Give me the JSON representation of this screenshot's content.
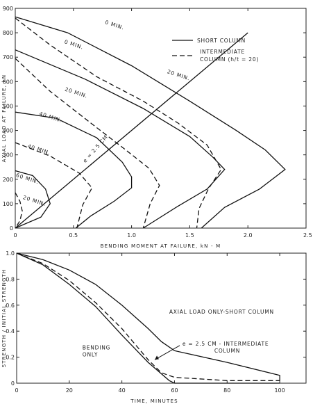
{
  "chart_data": [
    {
      "type": "line",
      "xlabel": "BENDING MOMENT AT FAILURE, kN - M",
      "ylabel": "AXIAL LOAD AT FAILURE, kN",
      "xlim": [
        0,
        2.5
      ],
      "ylim": [
        0,
        900
      ],
      "x_ticks": [
        "0",
        "0.5",
        "1.0",
        "1.5",
        "2.0",
        "2.5"
      ],
      "y_ticks": [
        "0",
        "100",
        "200",
        "300",
        "400",
        "500",
        "600",
        "700",
        "800",
        "900"
      ],
      "legend": {
        "placement": "top-right",
        "entries": [
          {
            "label": "SHORT COLUMN",
            "style": "solid"
          },
          {
            "label_lines": [
              "INTERMEDIATE",
              "COLUMN (h/t = 20)"
            ],
            "style": "dashed"
          }
        ]
      },
      "series": [
        {
          "group": "short",
          "style": "solid",
          "points": [
            [
              0,
              865
            ],
            [
              0.45,
              800
            ],
            [
              1.0,
              665
            ],
            [
              1.5,
              520
            ],
            [
              1.9,
              400
            ],
            [
              2.15,
              320
            ],
            [
              2.32,
              240
            ],
            [
              2.1,
              160
            ],
            [
              1.8,
              85
            ],
            [
              1.6,
              0
            ]
          ]
        },
        {
          "group": "short",
          "style": "solid",
          "points": [
            [
              0,
              730
            ],
            [
              0.6,
              610
            ],
            [
              1.1,
              490
            ],
            [
              1.5,
              375
            ],
            [
              1.7,
              290
            ],
            [
              1.8,
              240
            ],
            [
              1.65,
              160
            ],
            [
              1.4,
              90
            ],
            [
              1.1,
              0
            ]
          ]
        },
        {
          "group": "short",
          "style": "solid",
          "points": [
            [
              0,
              475
            ],
            [
              0.35,
              450
            ],
            [
              0.7,
              370
            ],
            [
              0.92,
              270
            ],
            [
              1.0,
              210
            ],
            [
              1.0,
              165
            ],
            [
              0.85,
              110
            ],
            [
              0.65,
              50
            ],
            [
              0.52,
              0
            ]
          ]
        },
        {
          "group": "short",
          "style": "solid",
          "points": [
            [
              0,
              235
            ],
            [
              0.15,
              215
            ],
            [
              0.26,
              160
            ],
            [
              0.3,
              100
            ],
            [
              0.22,
              45
            ],
            [
              0,
              0
            ]
          ]
        },
        {
          "group": "intermediate",
          "style": "dashed",
          "points": [
            [
              0,
              860
            ],
            [
              0.3,
              750
            ],
            [
              0.7,
              620
            ],
            [
              1.1,
              520
            ],
            [
              1.4,
              430
            ],
            [
              1.65,
              340
            ],
            [
              1.77,
              240
            ],
            [
              1.66,
              160
            ],
            [
              1.58,
              80
            ],
            [
              1.56,
              0
            ]
          ]
        },
        {
          "group": "intermediate",
          "style": "dashed",
          "points": [
            [
              0,
              695
            ],
            [
              0.3,
              560
            ],
            [
              0.65,
              430
            ],
            [
              0.95,
              320
            ],
            [
              1.15,
              245
            ],
            [
              1.24,
              175
            ],
            [
              1.16,
              100
            ],
            [
              1.1,
              0
            ]
          ]
        },
        {
          "group": "intermediate",
          "style": "dashed",
          "points": [
            [
              0,
              350
            ],
            [
              0.3,
              295
            ],
            [
              0.55,
              225
            ],
            [
              0.66,
              165
            ],
            [
              0.58,
              95
            ],
            [
              0.53,
              0
            ]
          ]
        },
        {
          "group": "intermediate",
          "style": "dashed",
          "points": [
            [
              0,
              145
            ],
            [
              0.04,
              110
            ],
            [
              0.06,
              70
            ],
            [
              0.04,
              30
            ],
            [
              0,
              0
            ]
          ]
        },
        {
          "group": "eccentricity",
          "style": "solid",
          "label": "e = 2.5 CM",
          "points": [
            [
              0,
              0
            ],
            [
              2.0,
              800
            ]
          ]
        }
      ],
      "curve_labels": [
        {
          "text": "0 MIN.",
          "x": 0.85,
          "y": 825
        },
        {
          "text": "0 MIN.",
          "x": 0.5,
          "y": 745
        },
        {
          "text": "20 MIN.",
          "x": 1.4,
          "y": 620
        },
        {
          "text": "20 MIN.",
          "x": 0.52,
          "y": 548
        },
        {
          "text": "40 MIN.",
          "x": 0.3,
          "y": 448
        },
        {
          "text": "40 MIN.",
          "x": 0.2,
          "y": 315
        },
        {
          "text": "60 MIN.",
          "x": 0.1,
          "y": 196
        },
        {
          "text": "20 MIN.",
          "x": 0.16,
          "y": 105
        }
      ]
    },
    {
      "type": "line",
      "xlabel": "TIME, MINUTES",
      "ylabel": "STRENGTH / INITIAL STRENGTH",
      "xlim": [
        0,
        110
      ],
      "ylim": [
        0,
        1.0
      ],
      "x_ticks": [
        "0",
        "20",
        "40",
        "60",
        "80",
        "100"
      ],
      "y_ticks": [
        "0",
        "0.2",
        "0.4",
        "0.6",
        "0.8",
        "1.0"
      ],
      "series": [
        {
          "name": "AXIAL LOAD ONLY-SHORT COLUMN",
          "style": "solid",
          "x": [
            0,
            10,
            20,
            30,
            40,
            50,
            55,
            60,
            80,
            100,
            100
          ],
          "y": [
            1.0,
            0.95,
            0.87,
            0.76,
            0.6,
            0.42,
            0.32,
            0.25,
            0.16,
            0.06,
            0.02
          ]
        },
        {
          "name": "e = 2.5 CM - INTERMEDIATE COLUMN",
          "style": "dashed",
          "x": [
            0,
            10,
            20,
            30,
            40,
            50,
            55,
            60,
            80,
            100
          ],
          "y": [
            1.0,
            0.92,
            0.79,
            0.62,
            0.42,
            0.18,
            0.08,
            0.045,
            0.02,
            0.02
          ]
        },
        {
          "name": "BENDING ONLY",
          "style": "solid",
          "x": [
            0,
            10,
            20,
            30,
            40,
            50,
            58,
            60,
            100
          ],
          "y": [
            1.0,
            0.91,
            0.76,
            0.59,
            0.37,
            0.16,
            0.02,
            0.0,
            0.0
          ]
        }
      ],
      "annotations": [
        {
          "lines": [
            "AXIAL LOAD ONLY-SHORT COLUMN"
          ],
          "x": 58,
          "y": 0.535
        },
        {
          "lines": [
            "e = 2.5 CM - INTERMEDIATE",
            "COLUMN"
          ],
          "x": 63,
          "y": 0.29
        },
        {
          "lines": [
            "BENDING",
            "ONLY"
          ],
          "x": 25,
          "y": 0.26
        }
      ]
    }
  ]
}
